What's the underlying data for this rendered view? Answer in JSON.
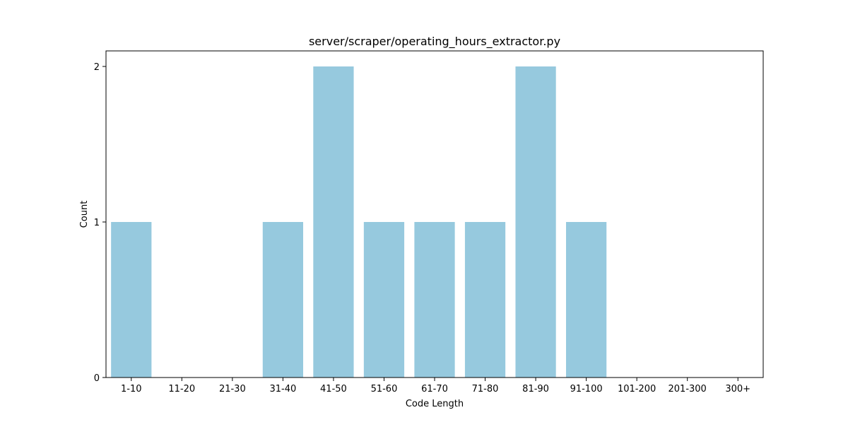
{
  "chart_data": {
    "type": "bar",
    "title": "server/scraper/operating_hours_extractor.py",
    "xlabel": "Code Length",
    "ylabel": "Count",
    "categories": [
      "1-10",
      "11-20",
      "21-30",
      "31-40",
      "41-50",
      "51-60",
      "61-70",
      "71-80",
      "81-90",
      "91-100",
      "101-200",
      "201-300",
      "300+"
    ],
    "values": [
      1,
      0,
      0,
      1,
      2,
      1,
      1,
      1,
      2,
      1,
      0,
      0,
      0
    ],
    "ylim": [
      0,
      2.1
    ],
    "yticks": [
      0,
      1,
      2
    ],
    "grid": false,
    "bar_color": "#96c9de"
  }
}
